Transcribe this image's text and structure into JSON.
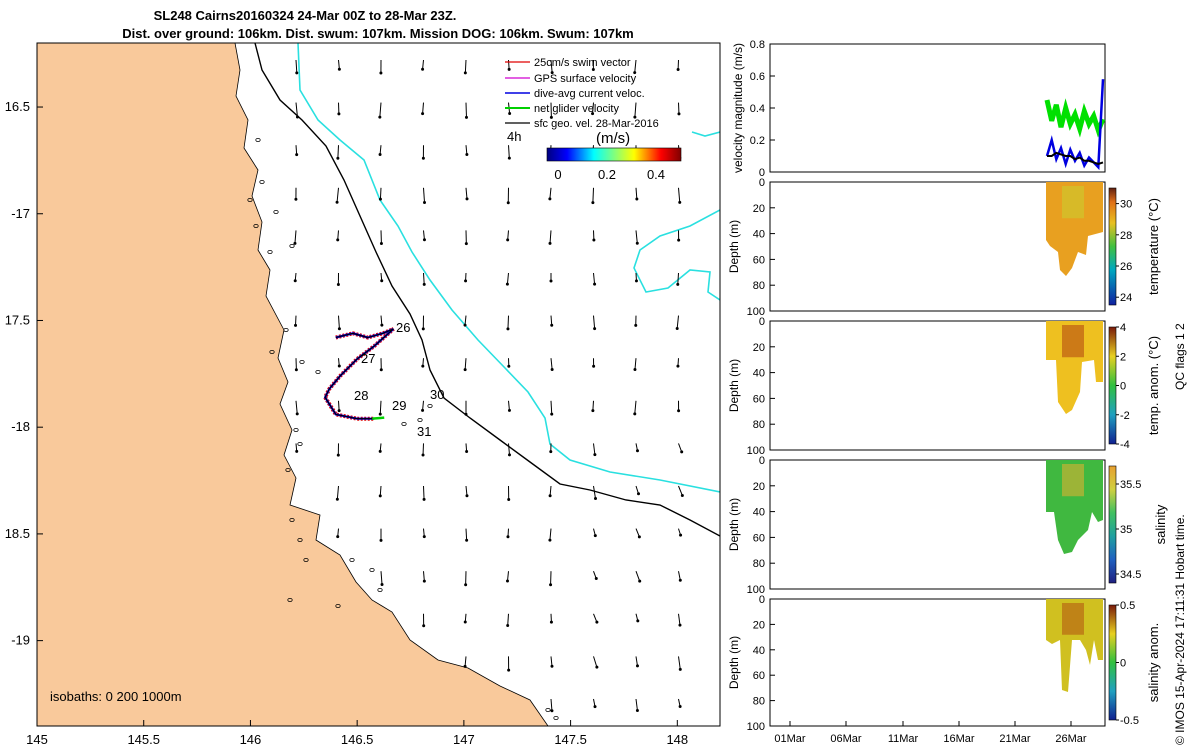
{
  "title": {
    "line1": "SL248 Cairns20160324 24-Mar 00Z to 28-Mar 23Z.",
    "line2": "Dist. over ground: 106km. Dist. swum: 107km. Mission DOG: 106km. Swum: 107km"
  },
  "map": {
    "lon_ticks": [
      "145",
      "145.5",
      "146",
      "146.5",
      "147",
      "147.5",
      "148"
    ],
    "lat_ticks": [
      "16.5",
      "-17",
      "17.5",
      "-18",
      "18.5",
      "-19"
    ],
    "xlim": [
      145,
      148.2
    ],
    "ylim": [
      -19.4,
      -16.2
    ],
    "legend": [
      {
        "label": "25cm/s swim vector",
        "color": "#e00000"
      },
      {
        "label": "GPS surface velocity",
        "color": "#d000d0"
      },
      {
        "label": "dive-avg current veloc.",
        "color": "#0000e0"
      },
      {
        "label": "net glider velocity",
        "color": "#00d000"
      },
      {
        "label": "sfc geo. vel. 28-Mar-2016",
        "color": "#000000"
      }
    ],
    "vector_scale_label": "4h",
    "colorbar": {
      "label": "(m/s)",
      "ticks": [
        "0",
        "0.2",
        "0.4"
      ],
      "range": [
        0,
        0.5
      ]
    },
    "track_day_labels": [
      "26",
      "27",
      "28",
      "29",
      "30",
      "31"
    ],
    "isobaths_label": "isobaths: 0   200  1000m",
    "land_color": "#f9c99b",
    "isobath_200_color": "#2ae0e0",
    "isobath_1000_color": "#000000"
  },
  "panels": {
    "x_ticks": [
      "01Mar",
      "06Mar",
      "11Mar",
      "16Mar",
      "21Mar",
      "26Mar"
    ],
    "velocity": {
      "ylabel": "velocity magnitude (m/s)",
      "yticks": [
        "0",
        "0.2",
        "0.4",
        "0.6",
        "0.8"
      ],
      "ylim": [
        0,
        0.8
      ]
    },
    "depth_ylabel": "Depth (m)",
    "depth_ticks": [
      "0",
      "20",
      "40",
      "60",
      "80",
      "100"
    ],
    "temperature": {
      "label": "temperature (°C)",
      "cticks": [
        "24",
        "26",
        "28",
        "30"
      ]
    },
    "temp_anom": {
      "label": "temp. anom. (°C)",
      "cticks": [
        "-4",
        "-2",
        "0",
        "2",
        "4"
      ]
    },
    "salinity": {
      "label": "salinity",
      "cticks": [
        "34.5",
        "35",
        "35.5"
      ]
    },
    "sal_anom": {
      "label": "salinity anom.",
      "cticks": [
        "-0.5",
        "0",
        "0.5"
      ]
    },
    "qc_flags": "QC flags 1  2",
    "credit": "© IMOS 15-Apr-2024 17:11:31 Hobart time."
  },
  "chart_data": [
    {
      "type": "scatter",
      "title": "SL248 Cairns20160324 24-Mar 00Z to 28-Mar 23Z.",
      "xlabel": "",
      "ylabel": "",
      "xlim": [
        145,
        148.2
      ],
      "ylim": [
        -19.4,
        -16.2
      ],
      "series": [
        {
          "name": "glider track",
          "lon": [
            146.4,
            146.48,
            146.55,
            146.62,
            146.67,
            146.58,
            146.5,
            146.42,
            146.37,
            146.35,
            146.4,
            146.5,
            146.58
          ],
          "lat": [
            -17.58,
            -17.56,
            -17.58,
            -17.56,
            -17.54,
            -17.62,
            -17.68,
            -17.76,
            -17.82,
            -17.86,
            -17.94,
            -17.96,
            -17.96
          ]
        }
      ],
      "track_day_labels": [
        "26",
        "27",
        "28",
        "29",
        "30",
        "31"
      ]
    },
    {
      "type": "line",
      "ylabel": "velocity magnitude (m/s)",
      "ylim": [
        0,
        0.8
      ],
      "series": [
        {
          "name": "net glider velocity",
          "values": [
            0.45,
            0.32,
            0.42,
            0.28,
            0.4,
            0.3,
            0.36,
            0.27,
            0.38,
            0.3,
            0.35,
            0.26,
            0.33
          ]
        },
        {
          "name": "dive-avg current veloc.",
          "values": [
            0.1,
            0.2,
            0.08,
            0.15,
            0.05,
            0.14,
            0.07,
            0.12,
            0.04,
            0.09,
            0.06,
            0.03,
            0.58
          ]
        },
        {
          "name": "sfc geo. vel. 28-Mar-2016",
          "values": [
            0.1,
            0.1,
            0.12,
            0.11,
            0.1,
            0.1,
            0.08,
            0.09,
            0.07,
            0.07,
            0.06,
            0.05,
            0.06
          ]
        }
      ]
    },
    {
      "type": "heatmap",
      "label": "temperature (°C)",
      "clim": [
        23.5,
        31
      ],
      "ylabel": "Depth (m)"
    },
    {
      "type": "heatmap",
      "label": "temp. anom. (°C)",
      "clim": [
        -4,
        4
      ],
      "ylabel": "Depth (m)"
    },
    {
      "type": "heatmap",
      "label": "salinity",
      "clim": [
        34.4,
        35.7
      ],
      "ylabel": "Depth (m)"
    },
    {
      "type": "heatmap",
      "label": "salinity anom.",
      "clim": [
        -0.5,
        0.5
      ],
      "ylabel": "Depth (m)"
    }
  ]
}
